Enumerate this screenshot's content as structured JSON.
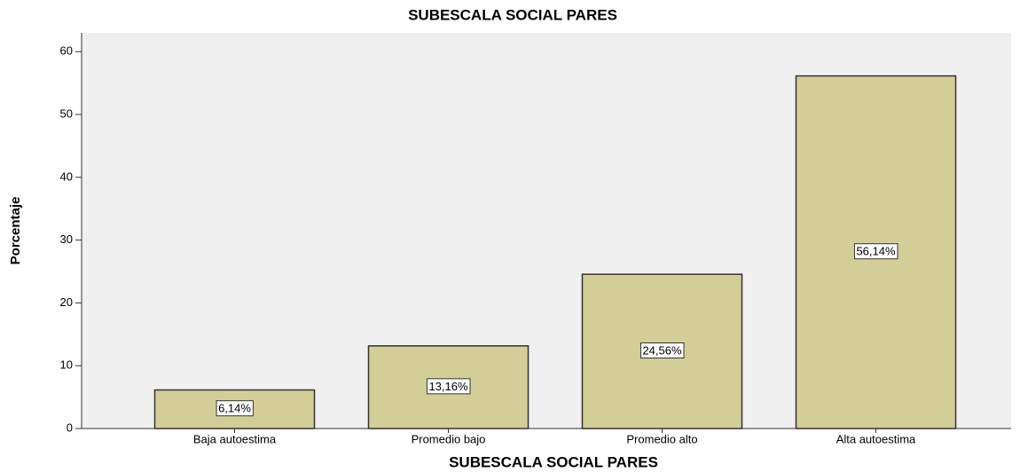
{
  "chart_data": {
    "type": "bar",
    "title": "SUBESCALA SOCIAL PARES",
    "x_label": "SUBESCALA SOCIAL PARES",
    "y_label": "Porcentaje",
    "categories": [
      "Baja autoestima",
      "Promedio bajo",
      "Promedio alto",
      "Alta autoestima"
    ],
    "values": [
      6.14,
      13.16,
      24.56,
      56.14
    ],
    "value_labels": [
      "6,14%",
      "13,16%",
      "24,56%",
      "56,14%"
    ],
    "color": "#d3ce97",
    "ylim": [
      0,
      63
    ],
    "yticks": [
      0,
      10,
      20,
      30,
      40,
      50,
      60
    ],
    "grid": false
  }
}
